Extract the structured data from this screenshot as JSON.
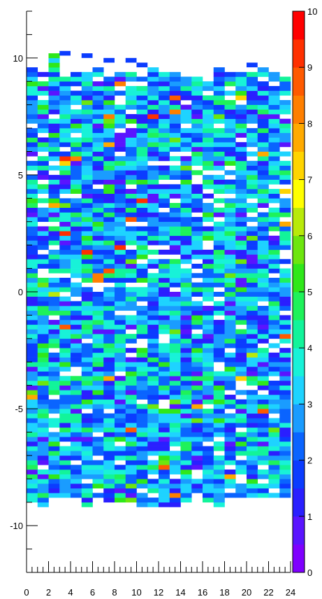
{
  "chart_data": {
    "type": "heatmap",
    "title": "",
    "xlabel": "",
    "ylabel": "",
    "x_range": [
      0,
      24
    ],
    "y_range": [
      -12,
      12
    ],
    "x_ticks": [
      "0",
      "2",
      "4",
      "6",
      "8",
      "10",
      "12",
      "14",
      "16",
      "18",
      "20",
      "22",
      "24"
    ],
    "y_ticks": [
      "10",
      "5",
      "0",
      "-5",
      "-10"
    ],
    "colorbar_range": [
      0,
      10
    ],
    "colorbar_ticks": [
      "0",
      "1",
      "2",
      "3",
      "4",
      "5",
      "6",
      "7",
      "8",
      "9",
      "10"
    ],
    "bin_width_x": 1,
    "bin_height_y": 0.2,
    "y_extent_lower": [
      -9,
      -9.2,
      -8.8,
      -8.8,
      -8.8,
      -9.2,
      -8.8,
      -9,
      -9,
      -9,
      -9.2,
      -9.2,
      -9.2,
      -9.2,
      -9,
      -8.8,
      -9.2,
      -9.2,
      -8.8,
      -8.8,
      -8.8,
      -8.8,
      -8.8,
      -8.8
    ],
    "y_extent_upper": [
      9.6,
      9.4,
      10.2,
      9.4,
      9.4,
      9.4,
      9.6,
      9.2,
      9.4,
      9.4,
      9.4,
      9.6,
      9.4,
      9.4,
      9.2,
      9.2,
      9.2,
      9.6,
      9.4,
      9.4,
      9.4,
      9.6,
      9.4,
      9.2
    ],
    "density_mean": 2.9,
    "isolated_bins": [
      {
        "x": 3.5,
        "y": 10.2
      },
      {
        "x": 5.5,
        "y": 10.1
      },
      {
        "x": 7.5,
        "y": 9.9
      },
      {
        "x": 9.5,
        "y": 9.9
      },
      {
        "x": 10.5,
        "y": 9.7
      },
      {
        "x": 20.5,
        "y": 9.7
      }
    ],
    "colormap": [
      "#7f00ff",
      "#5a14ff",
      "#2a1fff",
      "#0b3cff",
      "#0a64ff",
      "#1a9cff",
      "#1ed3ff",
      "#18f2d8",
      "#12f49a",
      "#1ef25a",
      "#2fe81a",
      "#6de60e",
      "#b8ea0a",
      "#ffff00",
      "#ffd400",
      "#ffaa00",
      "#ff7f00",
      "#ff5a00",
      "#ff3000",
      "#ff0000"
    ]
  }
}
